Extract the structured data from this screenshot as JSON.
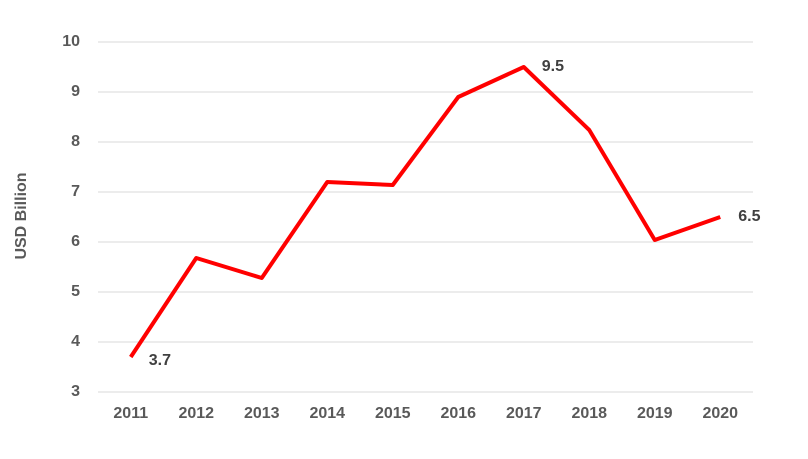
{
  "chart_data": {
    "type": "line",
    "y_label": "USD Billion",
    "categories": [
      "2011",
      "2012",
      "2013",
      "2014",
      "2015",
      "2016",
      "2017",
      "2018",
      "2019",
      "2020"
    ],
    "series": [
      {
        "name": "USD Billion",
        "color": "#ff0000",
        "values": [
          3.7,
          5.68,
          5.28,
          7.2,
          7.14,
          8.9,
          9.5,
          8.24,
          6.04,
          6.5
        ],
        "value_labels": [
          "3.7",
          null,
          null,
          null,
          null,
          null,
          "9.5",
          null,
          null,
          "6.5"
        ]
      }
    ],
    "ylim": [
      3,
      10
    ],
    "yticks": [
      3,
      4,
      5,
      6,
      7,
      8,
      9,
      10
    ],
    "grid": true
  }
}
